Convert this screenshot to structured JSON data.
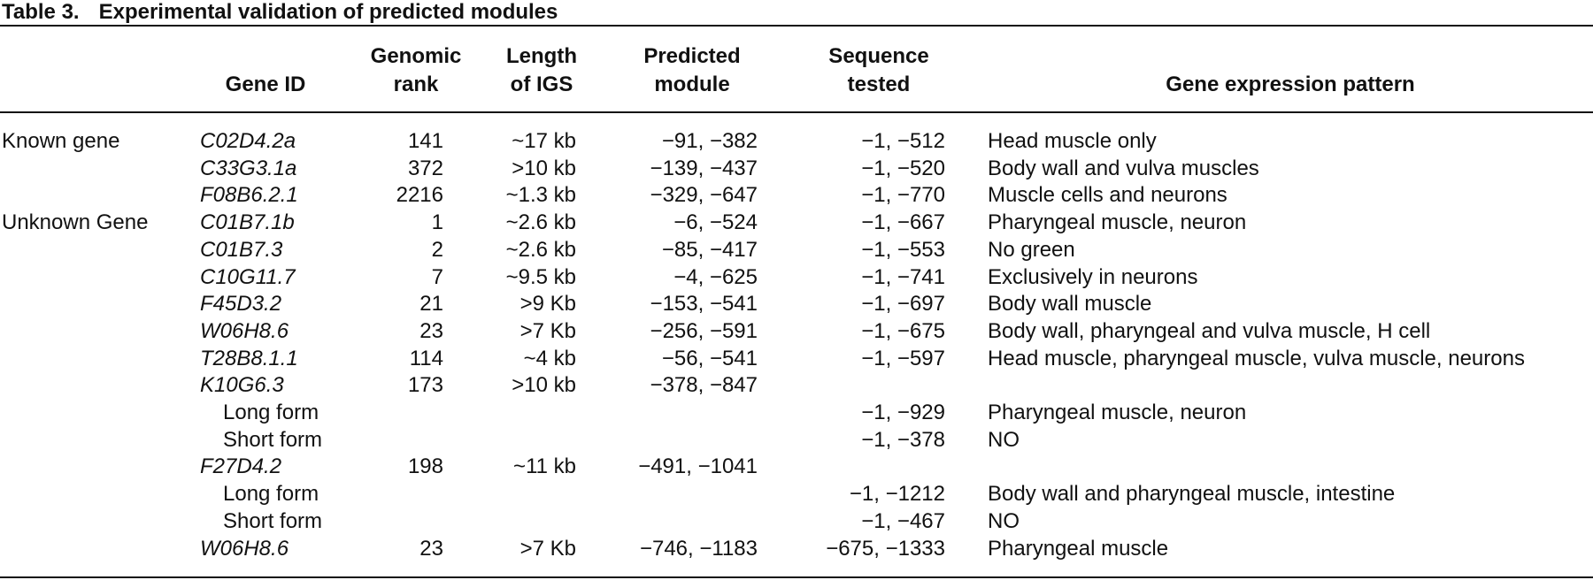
{
  "table": {
    "label": "Table 3.",
    "title": "Experimental validation of predicted modules",
    "header": [
      null,
      "Gene ID",
      "Genomic\nrank",
      "Length\nof IGS",
      "Predicted\nmodule",
      "Sequence\ntested",
      "Gene expression pattern"
    ],
    "rows": [
      [
        "Known gene",
        "C02D4.2a",
        141,
        "~17 kb",
        "−91, −382",
        "−1, −512",
        "Head muscle only"
      ],
      [
        null,
        "C33G3.1a",
        372,
        ">10 kb",
        "−139, −437",
        "−1, −520",
        "Body wall and vulva muscles"
      ],
      [
        null,
        "F08B6.2.1",
        2216,
        "~1.3 kb",
        "−329, −647",
        "−1, −770",
        "Muscle cells and neurons"
      ],
      [
        "Unknown Gene",
        "C01B7.1b",
        1,
        "~2.6 kb",
        "−6, −524",
        "−1, −667",
        "Pharyngeal muscle, neuron"
      ],
      [
        null,
        "C01B7.3",
        2,
        "~2.6 kb",
        "−85, −417",
        "−1, −553",
        "No green"
      ],
      [
        null,
        "C10G11.7",
        7,
        "~9.5 kb",
        "−4, −625",
        "−1, −741",
        "Exclusively in neurons"
      ],
      [
        null,
        "F45D3.2",
        21,
        ">9 Kb",
        "−153, −541",
        "−1, −697",
        "Body wall muscle"
      ],
      [
        null,
        "W06H8.6",
        23,
        ">7 Kb",
        "−256, −591",
        "−1, −675",
        "Body wall, pharyngeal and vulva muscle, H cell"
      ],
      [
        null,
        "T28B8.1.1",
        114,
        "~4 kb",
        "−56, −541",
        "−1, −597",
        "Head muscle, pharyngeal muscle, vulva muscle, neurons"
      ],
      [
        null,
        "K10G6.3",
        173,
        ">10 kb",
        "−378, −847",
        null,
        null
      ],
      [
        null,
        "Long form",
        null,
        null,
        null,
        "−1, −929",
        "Pharyngeal muscle, neuron"
      ],
      [
        null,
        "Short form",
        null,
        null,
        null,
        "−1, −378",
        "NO"
      ],
      [
        null,
        "F27D4.2",
        198,
        "~11 kb",
        "−491, −1041",
        null,
        null
      ],
      [
        null,
        "Long form",
        null,
        null,
        null,
        "−1, −1212",
        "Body wall and pharyngeal muscle, intestine"
      ],
      [
        null,
        "Short form",
        null,
        null,
        null,
        "−1, −467",
        "NO"
      ],
      [
        null,
        "W06H8.6",
        23,
        ">7 Kb",
        "−746, −1183",
        "−675, −1333",
        "Pharyngeal muscle"
      ]
    ]
  }
}
